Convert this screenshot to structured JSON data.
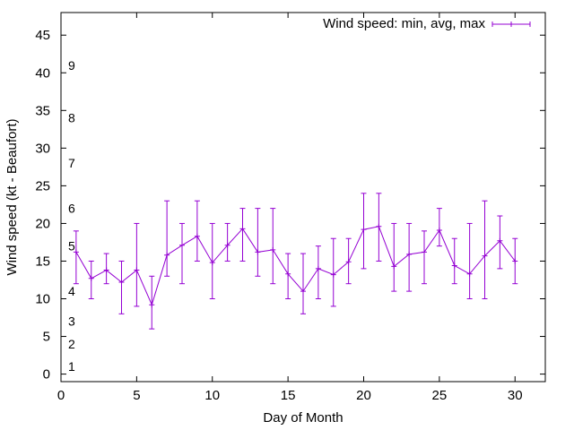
{
  "chart_data": {
    "type": "line",
    "xlabel": "Day of Month",
    "ylabel": "Wind speed (kt - Beaufort)",
    "xlim": [
      0,
      32
    ],
    "ylim": [
      -1,
      48
    ],
    "xticks": [
      "0",
      "5",
      "10",
      "15",
      "20",
      "25",
      "30"
    ],
    "xtick_values": [
      0,
      5,
      10,
      15,
      20,
      25,
      30
    ],
    "yticks": [
      "0",
      "5",
      "10",
      "15",
      "20",
      "25",
      "30",
      "35",
      "40",
      "45"
    ],
    "ytick_values": [
      0,
      5,
      10,
      15,
      20,
      25,
      30,
      35,
      40,
      45
    ],
    "beaufort_labels": [
      {
        "label": "1",
        "y": 1
      },
      {
        "label": "2",
        "y": 4
      },
      {
        "label": "3",
        "y": 7
      },
      {
        "label": "4",
        "y": 11
      },
      {
        "label": "5",
        "y": 17
      },
      {
        "label": "6",
        "y": 22
      },
      {
        "label": "7",
        "y": 28
      },
      {
        "label": "8",
        "y": 34
      },
      {
        "label": "9",
        "y": 41
      }
    ],
    "grid": false,
    "legend_position": "top-right",
    "series": [
      {
        "name": "Wind speed: min, avg, max",
        "color": "#9400d3",
        "x": [
          1,
          2,
          3,
          4,
          5,
          6,
          7,
          8,
          9,
          10,
          11,
          12,
          13,
          14,
          15,
          16,
          17,
          18,
          19,
          20,
          21,
          22,
          23,
          24,
          25,
          26,
          27,
          28,
          29,
          30
        ],
        "avg": [
          16.2,
          12.7,
          13.8,
          12.2,
          13.8,
          9.2,
          15.8,
          17.1,
          18.3,
          14.8,
          17.1,
          19.3,
          16.2,
          16.5,
          13.3,
          11.0,
          14.0,
          13.2,
          14.9,
          19.2,
          19.6,
          14.3,
          15.9,
          16.2,
          19.1,
          14.4,
          13.3,
          15.7,
          17.7,
          15.0
        ],
        "min": [
          12,
          10,
          12,
          8,
          9,
          6,
          13,
          12,
          15,
          10,
          15,
          15,
          13,
          12,
          10,
          8,
          10,
          9,
          12,
          14,
          15,
          11,
          11,
          12,
          17,
          12,
          10,
          10,
          14,
          12
        ],
        "max": [
          19,
          15,
          16,
          15,
          20,
          13,
          23,
          20,
          23,
          20,
          20,
          22,
          22,
          22,
          16,
          16,
          17,
          18,
          18,
          24,
          24,
          20,
          20,
          19,
          22,
          18,
          20,
          23,
          21,
          18
        ]
      }
    ]
  }
}
